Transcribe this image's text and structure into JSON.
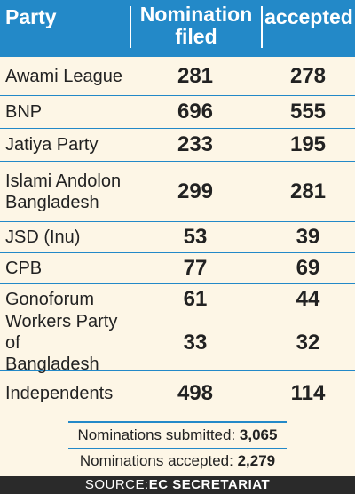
{
  "header": {
    "party": "Party",
    "nomination_line1": "Nomination",
    "nomination_line2": "filed",
    "accepted": "accepted"
  },
  "rows": [
    {
      "party_l1": "Awami League",
      "party_l2": "",
      "filed": "281",
      "accepted": "278"
    },
    {
      "party_l1": "BNP",
      "party_l2": "",
      "filed": "696",
      "accepted": "555"
    },
    {
      "party_l1": "Jatiya Party",
      "party_l2": "",
      "filed": "233",
      "accepted": "195"
    },
    {
      "party_l1": "Islami Andolon",
      "party_l2": "Bangladesh",
      "filed": "299",
      "accepted": "281"
    },
    {
      "party_l1": "JSD (Inu)",
      "party_l2": "",
      "filed": "53",
      "accepted": "39"
    },
    {
      "party_l1": "CPB",
      "party_l2": "",
      "filed": "77",
      "accepted": "69"
    },
    {
      "party_l1": "Gonoforum",
      "party_l2": "",
      "filed": "61",
      "accepted": "44"
    },
    {
      "party_l1": "Workers Party of",
      "party_l2": "Bangladesh",
      "filed": "33",
      "accepted": "32"
    },
    {
      "party_l1": "Independents",
      "party_l2": "",
      "filed": "498",
      "accepted": "114"
    }
  ],
  "totals": {
    "submitted_label": "Nominations submitted:",
    "submitted_value": "3,065",
    "accepted_label": "Nominations accepted:",
    "accepted_value": "2,279"
  },
  "source": {
    "label": "SOURCE:",
    "value": "EC SECRETARIAT"
  }
}
